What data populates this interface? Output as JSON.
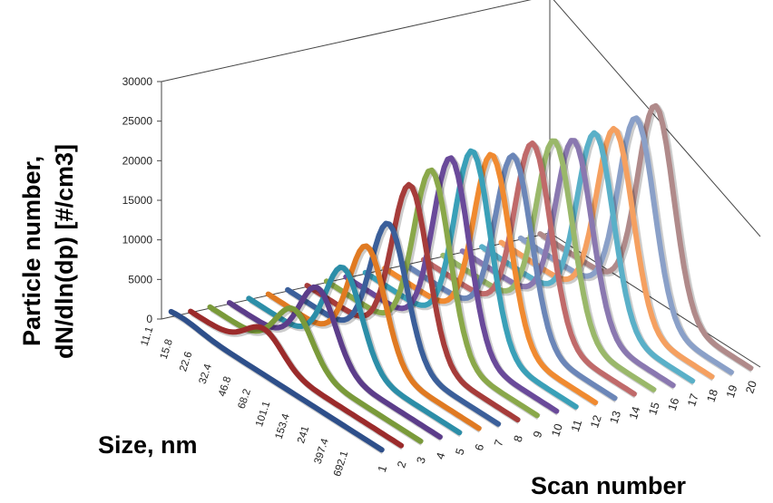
{
  "chart_data": {
    "type": "3d-line",
    "ylabel_line1": "Particle number,",
    "ylabel_line2": "dN/dln(dp) [#/cm3]",
    "size_axis_label": "Size, nm",
    "scan_axis_label": "Scan number",
    "z_ticks": [
      "0",
      "5000",
      "10000",
      "15000",
      "20000",
      "25000",
      "30000"
    ],
    "zlim": [
      0,
      30000
    ],
    "size_ticks": [
      "11.1",
      "15.8",
      "22.6",
      "32.4",
      "46.8",
      "68.2",
      "101.1",
      "153.4",
      "241",
      "397.4",
      "692.1"
    ],
    "scan_ticks": [
      "1",
      "2",
      "3",
      "4",
      "5",
      "6",
      "7",
      "8",
      "9",
      "10",
      "11",
      "12",
      "13",
      "14",
      "15",
      "16",
      "17",
      "18",
      "19",
      "20"
    ],
    "series": [
      {
        "scan": 1,
        "color": "#2e4f8a",
        "peak_size_index": 0.5,
        "peak": 600
      },
      {
        "scan": 2,
        "color": "#9b2b2b",
        "peak_size_index": 3.5,
        "peak": 3700
      },
      {
        "scan": 3,
        "color": "#7a9a3a",
        "peak_size_index": 4.0,
        "peak": 6500
      },
      {
        "scan": 4,
        "color": "#5c3d8a",
        "peak_size_index": 4.2,
        "peak": 9000
      },
      {
        "scan": 5,
        "color": "#2c8ea8",
        "peak_size_index": 4.5,
        "peak": 11500
      },
      {
        "scan": 6,
        "color": "#e07a22",
        "peak_size_index": 4.7,
        "peak": 14000
      },
      {
        "scan": 7,
        "color": "#3b5f9a",
        "peak_size_index": 4.8,
        "peak": 16500
      },
      {
        "scan": 8,
        "color": "#a63c3a",
        "peak_size_index": 4.9,
        "peak": 21000
      },
      {
        "scan": 9,
        "color": "#8aa84a",
        "peak_size_index": 5.0,
        "peak": 22500
      },
      {
        "scan": 10,
        "color": "#6a4a9a",
        "peak_size_index": 5.0,
        "peak": 23500
      },
      {
        "scan": 11,
        "color": "#3aa0b8",
        "peak_size_index": 5.1,
        "peak": 24000
      },
      {
        "scan": 12,
        "color": "#f08a30",
        "peak_size_index": 5.1,
        "peak": 23000
      },
      {
        "scan": 13,
        "color": "#6b86b8",
        "peak_size_index": 5.2,
        "peak": 22500
      },
      {
        "scan": 14,
        "color": "#c06a6a",
        "peak_size_index": 5.2,
        "peak": 23500
      },
      {
        "scan": 15,
        "color": "#9ab86a",
        "peak_size_index": 5.3,
        "peak": 23500
      },
      {
        "scan": 16,
        "color": "#8a78b0",
        "peak_size_index": 5.3,
        "peak": 23000
      },
      {
        "scan": 17,
        "color": "#5ab0c8",
        "peak_size_index": 5.4,
        "peak": 23500
      },
      {
        "scan": 18,
        "color": "#f5a060",
        "peak_size_index": 5.4,
        "peak": 23500
      },
      {
        "scan": 19,
        "color": "#8aa0c8",
        "peak_size_index": 5.5,
        "peak": 24500
      },
      {
        "scan": 20,
        "color": "#b08a8a",
        "peak_size_index": 5.5,
        "peak": 25500
      }
    ]
  }
}
